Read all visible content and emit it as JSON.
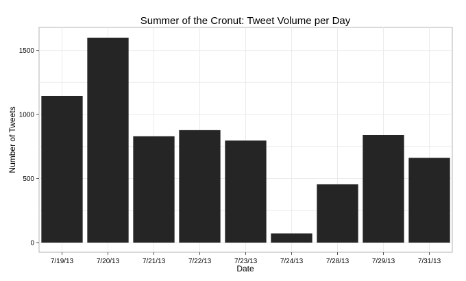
{
  "chart_data": {
    "type": "bar",
    "title": "Summer of the Cronut: Tweet Volume per Day",
    "xlabel": "Date",
    "ylabel": "Number of Tweets",
    "categories": [
      "7/19/13",
      "7/20/13",
      "7/21/13",
      "7/22/13",
      "7/23/13",
      "7/24/13",
      "7/28/13",
      "7/29/13",
      "7/31/13"
    ],
    "values": [
      1145,
      1600,
      830,
      878,
      797,
      72,
      455,
      840,
      662
    ],
    "ylim": [
      -75,
      1680
    ],
    "yticks": [
      0,
      500,
      1000,
      1500
    ],
    "grid": true,
    "bar_color": "#252525"
  }
}
